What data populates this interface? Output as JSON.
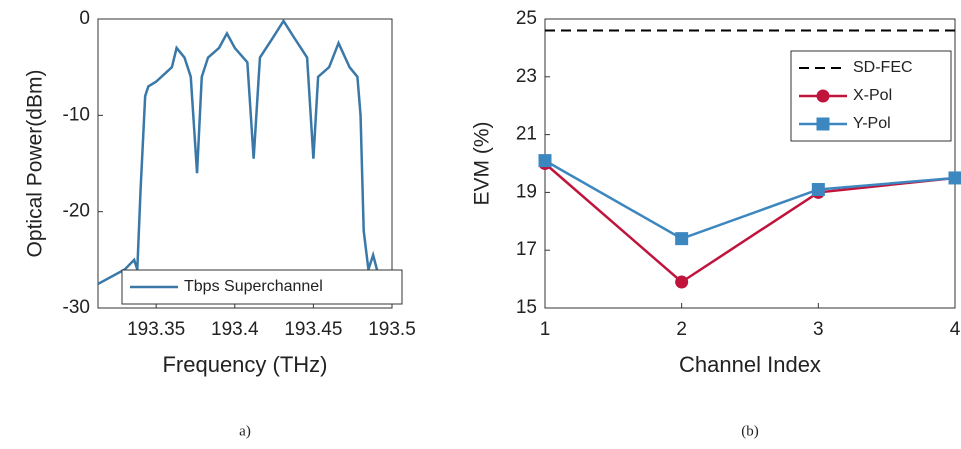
{
  "chart_data": [
    {
      "type": "line",
      "caption": "a)",
      "xlabel": "Frequency (THz)",
      "ylabel": "Optical Power(dBm)",
      "xlim": [
        193.313,
        193.5
      ],
      "xticks": [
        193.35,
        193.4,
        193.45,
        193.5
      ],
      "ylim": [
        -30,
        0
      ],
      "yticks": [
        0,
        -10,
        -20,
        -30
      ],
      "grid": false,
      "legend": "lower left",
      "x": [
        193.313,
        193.33,
        193.336,
        193.338,
        193.34,
        193.343,
        193.345,
        193.35,
        193.36,
        193.363,
        193.368,
        193.372,
        193.376,
        193.379,
        193.383,
        193.39,
        193.395,
        193.4,
        193.408,
        193.412,
        193.416,
        193.424,
        193.431,
        193.438,
        193.446,
        193.45,
        193.453,
        193.46,
        193.466,
        193.473,
        193.478,
        193.48,
        193.482,
        193.485,
        193.488,
        193.492,
        193.5
      ],
      "series": [
        {
          "name": "Tbps Superchannel",
          "color": "#3a78a8",
          "values": [
            -27.5,
            -26,
            -25,
            -26,
            -18,
            -8,
            -7,
            -6.5,
            -5,
            -3,
            -4,
            -6,
            -16,
            -6,
            -4,
            -3,
            -1.5,
            -3,
            -4.5,
            -14.5,
            -4,
            -2,
            -0.2,
            -2,
            -4,
            -14.5,
            -6,
            -5,
            -2.5,
            -5,
            -6,
            -10,
            -22,
            -26,
            -24.5,
            -27,
            -27
          ]
        }
      ]
    },
    {
      "type": "line",
      "caption": "(b)",
      "xlabel": "Channel Index",
      "ylabel": "EVM (%)",
      "xlim": [
        1,
        4
      ],
      "xticks": [
        1,
        2,
        3,
        4
      ],
      "ylim": [
        15,
        25
      ],
      "yticks": [
        15,
        17,
        19,
        21,
        23,
        25
      ],
      "grid": false,
      "legend": "upper right",
      "hlines": [
        {
          "name": "SD-FEC",
          "value": 24.6,
          "color": "#000000"
        }
      ],
      "x": [
        1,
        2,
        3,
        4
      ],
      "series": [
        {
          "name": "X-Pol",
          "color": "#c0143c",
          "marker": "circle",
          "values": [
            20,
            15.9,
            19,
            19.5
          ]
        },
        {
          "name": "Y-Pol",
          "color": "#3d87c0",
          "marker": "square",
          "values": [
            20.1,
            17.4,
            19.1,
            19.5
          ]
        }
      ]
    }
  ]
}
